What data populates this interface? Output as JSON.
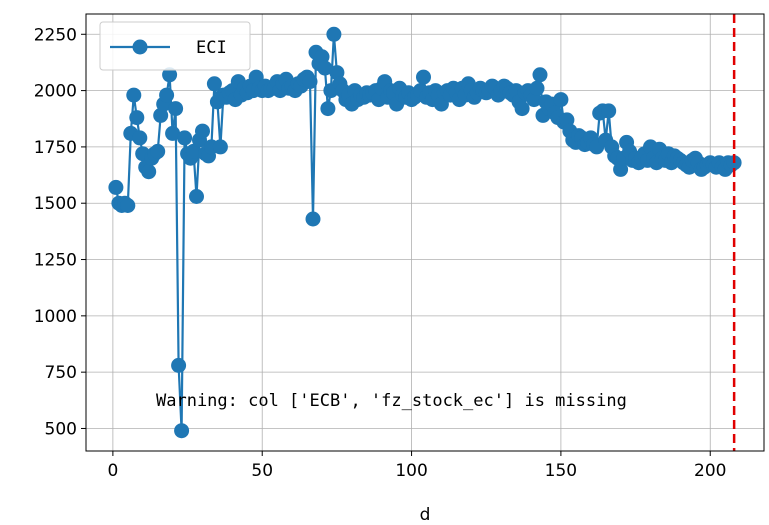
{
  "chart_data": {
    "type": "line",
    "title": "",
    "xlabel": "d",
    "ylabel": "",
    "xlim": [
      -9,
      218
    ],
    "ylim": [
      400,
      2340
    ],
    "xticks": [
      0,
      50,
      100,
      150,
      200
    ],
    "yticks": [
      500,
      750,
      1000,
      1250,
      1500,
      1750,
      2000,
      2250
    ],
    "grid": true,
    "legend_position": "top-left",
    "series": [
      {
        "name": "ECI",
        "color": "#1f77b4",
        "x": [
          1,
          2,
          3,
          4,
          5,
          6,
          7,
          8,
          9,
          10,
          11,
          12,
          13,
          14,
          15,
          16,
          17,
          18,
          19,
          20,
          21,
          22,
          23,
          24,
          25,
          26,
          27,
          28,
          29,
          30,
          31,
          32,
          33,
          34,
          35,
          36,
          37,
          38,
          39,
          40,
          41,
          42,
          43,
          44,
          45,
          46,
          47,
          48,
          49,
          50,
          51,
          52,
          53,
          54,
          55,
          56,
          57,
          58,
          59,
          60,
          61,
          62,
          63,
          64,
          65,
          66,
          67,
          68,
          69,
          70,
          71,
          72,
          73,
          74,
          75,
          76,
          77,
          78,
          79,
          80,
          81,
          82,
          83,
          84,
          85,
          86,
          87,
          88,
          89,
          90,
          91,
          92,
          93,
          94,
          95,
          96,
          97,
          98,
          99,
          100,
          101,
          102,
          103,
          104,
          105,
          106,
          107,
          108,
          109,
          110,
          111,
          112,
          113,
          114,
          115,
          116,
          117,
          118,
          119,
          120,
          121,
          122,
          123,
          124,
          125,
          126,
          127,
          128,
          129,
          130,
          131,
          132,
          133,
          134,
          135,
          136,
          137,
          138,
          139,
          140,
          141,
          142,
          143,
          144,
          145,
          146,
          147,
          148,
          149,
          150,
          151,
          152,
          153,
          154,
          155,
          156,
          157,
          158,
          159,
          160,
          161,
          162,
          163,
          164,
          165,
          166,
          167,
          168,
          169,
          170,
          171,
          172,
          173,
          174,
          175,
          176,
          177,
          178,
          179,
          180,
          181,
          182,
          183,
          184,
          185,
          186,
          187,
          188,
          189,
          190,
          191,
          192,
          193,
          194,
          195,
          196,
          197,
          198,
          199,
          200,
          201,
          202,
          203,
          204,
          205,
          206,
          207,
          208
        ],
        "values": [
          1570,
          1500,
          1490,
          1500,
          1490,
          1810,
          1980,
          1880,
          1790,
          1720,
          1660,
          1640,
          1700,
          1720,
          1730,
          1890,
          1940,
          1980,
          2070,
          1810,
          1920,
          780,
          490,
          1790,
          1720,
          1700,
          1730,
          1530,
          1780,
          1820,
          1720,
          1710,
          1750,
          2030,
          1950,
          1750,
          1980,
          1970,
          1990,
          2000,
          1960,
          2040,
          1980,
          2010,
          1990,
          2020,
          2000,
          2060,
          2010,
          2000,
          2020,
          2000,
          2010,
          2010,
          2040,
          2000,
          2030,
          2050,
          2010,
          2020,
          2000,
          2030,
          2020,
          2050,
          2060,
          2040,
          1430,
          2170,
          2120,
          2150,
          2100,
          1920,
          2000,
          2250,
          2080,
          2030,
          2000,
          1960,
          1980,
          1940,
          2000,
          1960,
          1980,
          1970,
          1990,
          1980,
          1990,
          2000,
          1960,
          2010,
          2040,
          1970,
          2000,
          1990,
          1940,
          2010,
          1980,
          1970,
          1990,
          1960,
          1970,
          1980,
          2000,
          2060,
          1970,
          1990,
          1960,
          2000,
          1980,
          1940,
          1990,
          2000,
          1980,
          2010,
          1990,
          1960,
          2010,
          1980,
          2030,
          2000,
          1970,
          1990,
          2010,
          2000,
          1990,
          2000,
          2020,
          2010,
          1980,
          2000,
          2020,
          2010,
          1990,
          1980,
          2000,
          1950,
          1920,
          1990,
          2000,
          1980,
          1960,
          2010,
          2070,
          1890,
          1950,
          1920,
          1940,
          1900,
          1880,
          1960,
          1860,
          1870,
          1820,
          1780,
          1770,
          1800,
          1790,
          1760,
          1770,
          1790,
          1760,
          1750,
          1900,
          1910,
          1780,
          1910,
          1750,
          1710,
          1700,
          1650,
          1700,
          1770,
          1730,
          1690,
          1700,
          1680,
          1700,
          1720,
          1690,
          1750,
          1700,
          1680,
          1740,
          1700,
          1690,
          1720,
          1680,
          1710,
          1700,
          1690,
          1680,
          1670,
          1660,
          1690,
          1700,
          1680,
          1650,
          1660,
          1670,
          1680,
          1670,
          1660,
          1680,
          1660,
          1650,
          1680,
          1670,
          1680
        ]
      }
    ],
    "vline": {
      "x": 208,
      "color": "#e00000",
      "style": "dashed"
    },
    "annotation": "Warning: col ['ECB', 'fz_stock_ec'] is missing"
  }
}
